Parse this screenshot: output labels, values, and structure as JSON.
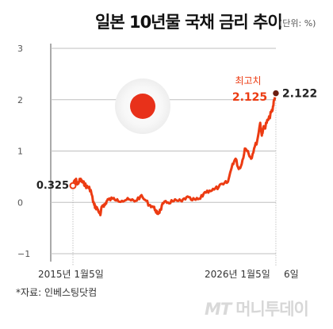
{
  "title": "일본 10년물 국채 금리 추이",
  "unit_label": "(단위: %)",
  "source_note": "*자료: 인베스팅닷컴",
  "brand": {
    "mt_text": "MT",
    "name_text": "머니투데이"
  },
  "colors": {
    "line": "#ec3b12",
    "flag_red": "#e8311a",
    "axis": "#555555",
    "grid": "#bfbfbf",
    "text": "#222222",
    "brand": "#d7d7d7"
  },
  "chart_data": {
    "type": "line",
    "title": "일본 10년물 국채 금리 추이",
    "ylim": [
      -1,
      3
    ],
    "xlim": [
      "2015-01-05",
      "2026-01-06"
    ],
    "y_ticks": [
      {
        "value": 3,
        "label": "3"
      },
      {
        "value": 2,
        "label": "2"
      },
      {
        "value": 1,
        "label": "1"
      },
      {
        "value": 0,
        "label": "0"
      },
      {
        "value": -1,
        "label": "−1"
      }
    ],
    "x_tick_labels": [
      {
        "date": "2015-01-05",
        "label": "2015년 1월5일"
      },
      {
        "date": "2026-01-05",
        "label": "2026년 1월5일"
      },
      {
        "date": "2026-01-06",
        "label": "6일"
      }
    ],
    "annotations": {
      "start": {
        "date": "2015-01-05",
        "value": 0.325,
        "label": "0.325"
      },
      "peak": {
        "date": "2026-01-05",
        "value": 2.125,
        "title": "최고치",
        "label": "2.125"
      },
      "last": {
        "date": "2026-01-06",
        "value": 2.122,
        "label": "2.122"
      }
    },
    "series": [
      {
        "x": [
          "2015-01-05",
          "2015-02-01",
          "2015-03-01",
          "2015-04-01",
          "2015-05-01",
          "2015-06-01",
          "2015-07-01",
          "2015-08-01",
          "2015-09-01",
          "2015-10-01",
          "2015-11-01",
          "2015-12-01",
          "2016-01-01",
          "2016-02-01",
          "2016-03-01",
          "2016-04-01",
          "2016-05-01",
          "2016-06-01",
          "2016-07-01",
          "2016-08-01",
          "2016-09-01",
          "2016-10-01",
          "2016-11-01",
          "2016-12-01",
          "2017-03-01",
          "2017-06-01",
          "2017-09-01",
          "2017-12-01",
          "2018-03-01",
          "2018-06-01",
          "2018-09-01",
          "2018-12-01",
          "2019-03-01",
          "2019-05-01",
          "2019-07-01",
          "2019-08-01",
          "2019-09-01",
          "2019-10-01",
          "2019-12-01",
          "2020-03-01",
          "2020-06-01",
          "2020-09-01",
          "2020-12-01",
          "2021-03-01",
          "2021-06-01",
          "2021-09-01",
          "2021-12-01",
          "2022-03-01",
          "2022-06-01",
          "2022-09-01",
          "2022-12-01",
          "2023-03-01",
          "2023-06-01",
          "2023-09-01",
          "2023-11-01",
          "2024-01-01",
          "2024-03-01",
          "2024-05-01",
          "2024-07-01",
          "2024-09-01",
          "2024-11-01",
          "2025-01-01",
          "2025-03-01",
          "2025-04-01",
          "2025-05-01",
          "2025-06-01",
          "2025-07-01",
          "2025-08-01",
          "2025-09-01",
          "2025-10-01",
          "2025-11-01",
          "2025-12-01",
          "2026-01-05",
          "2026-01-06"
        ],
        "y": [
          0.325,
          0.4,
          0.45,
          0.35,
          0.4,
          0.45,
          0.4,
          0.38,
          0.35,
          0.3,
          0.3,
          0.27,
          0.2,
          0.05,
          -0.05,
          -0.1,
          -0.12,
          -0.18,
          -0.25,
          -0.08,
          -0.05,
          -0.05,
          0.02,
          0.05,
          0.07,
          0.06,
          0.03,
          0.05,
          0.04,
          0.03,
          0.12,
          0.05,
          -0.05,
          -0.08,
          -0.15,
          -0.22,
          -0.2,
          -0.15,
          -0.02,
          0.0,
          0.02,
          0.03,
          0.02,
          0.1,
          0.05,
          0.05,
          0.07,
          0.2,
          0.23,
          0.25,
          0.3,
          0.35,
          0.4,
          0.75,
          0.85,
          0.65,
          0.75,
          1.05,
          1.0,
          0.85,
          1.05,
          1.2,
          1.55,
          1.3,
          1.45,
          1.45,
          1.55,
          1.6,
          1.65,
          1.75,
          1.8,
          2.0,
          2.125,
          2.122
        ]
      }
    ]
  }
}
